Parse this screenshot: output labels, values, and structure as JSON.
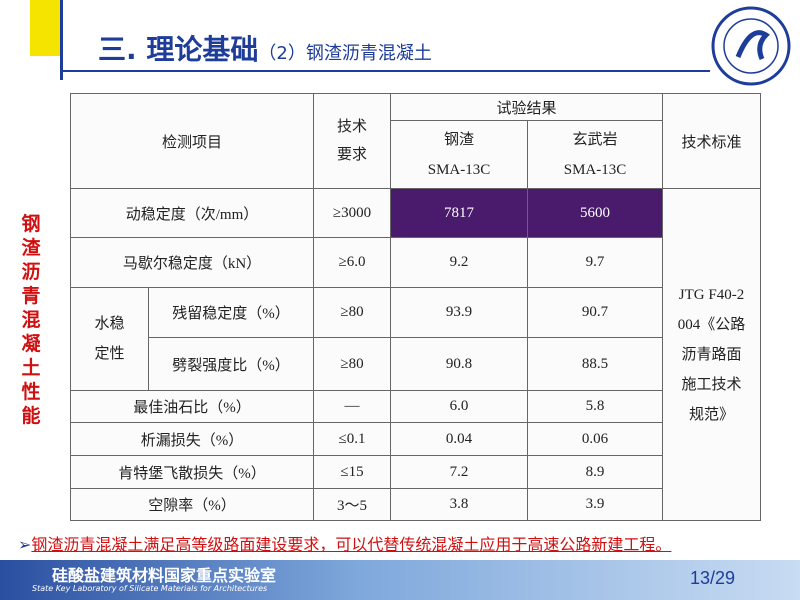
{
  "title": "三. 理论基础",
  "subtitle": "（2）钢渣沥青混凝土",
  "side_label": "钢渣沥青混凝土性能",
  "table": {
    "headers": {
      "item": "检测项目",
      "requirement": "技术要求",
      "results": "试验结果",
      "steel": "钢渣",
      "steel_mix": "SMA-13C",
      "basalt": "玄武岩",
      "basalt_mix": "SMA-13C",
      "standard": "技术标准"
    },
    "group_label": "水稳定性",
    "rows": [
      [
        "动稳定度（次/mm）",
        "≥3000",
        "7817",
        "5600"
      ],
      [
        "马歇尔稳定度（kN）",
        "≥6.0",
        "9.2",
        "9.7"
      ],
      [
        "残留稳定度（%）",
        "≥80",
        "93.9",
        "90.7"
      ],
      [
        "劈裂强度比（%）",
        "≥80",
        "90.8",
        "88.5"
      ],
      [
        "最佳油石比（%）",
        "—",
        "6.0",
        "5.8"
      ],
      [
        "析漏损失（%）",
        "≤0.1",
        "0.04",
        "0.06"
      ],
      [
        "肯特堡飞散损失（%）",
        "≤15",
        "7.2",
        "8.9"
      ],
      [
        "空隙率（%）",
        "3～5",
        "3.8",
        "3.9"
      ]
    ],
    "standard_value": "JTG F40-2004《公路沥青路面施工技术规范》"
  },
  "conclusion": "钢渣沥青混凝土满足高等级路面建设要求，可以代替传统混凝土应用于高速公路新建工程。",
  "footer": {
    "lab_cn": "硅酸盐建筑材料国家重点实验室",
    "lab_en": "State Key Laboratory of Silicate Materials for Architectures",
    "page": "13/29"
  }
}
